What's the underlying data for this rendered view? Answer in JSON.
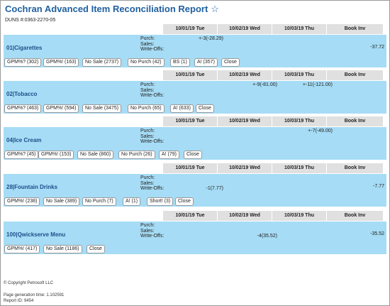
{
  "title": "Cochran Advanced Item Reconciliation Report",
  "star": "☆",
  "duns": "DUNS #:0363-2270-05",
  "columns": [
    "10/01/19 Tue",
    "10/02/19 Wed",
    "10/03/19 Thu",
    "Book Inv"
  ],
  "row_labels": [
    "Purch:",
    "Sales:",
    "Write-Offs:"
  ],
  "sections": [
    {
      "category": "01|Cigarettes",
      "purch": [
        "+-3(-28.29)",
        "",
        ""
      ],
      "writeoffs": [
        "",
        "",
        ""
      ],
      "book": "-37.72",
      "buttons": [
        "GPM%? (302)",
        "GPM%! (163)",
        "No Sale (2737)",
        "No Purch (42)",
        "BS (1)",
        "A! (357)",
        "Close"
      ]
    },
    {
      "category": "02|Tobacco",
      "purch": [
        "",
        "+-9(-81.00)",
        "+-11(-121.00)"
      ],
      "writeoffs": [
        "",
        "",
        ""
      ],
      "book": "",
      "buttons": [
        "GPM%? (463)",
        "GPM%! (594)",
        "No Sale (3475)",
        "No Purch (65)",
        "A! (633)",
        "Close"
      ]
    },
    {
      "category": "04|Ice Cream",
      "purch": [
        "",
        "",
        "+-7(-49.00)"
      ],
      "writeoffs": [
        "",
        "",
        ""
      ],
      "book": "",
      "buttons": [
        "GPM%? (45)",
        "GPM%! (153)",
        "No Sale (860)",
        "No Purch (26)",
        "A! (79)",
        "Close"
      ]
    },
    {
      "category": "28|Fountain Drinks",
      "purch": [
        "",
        "",
        ""
      ],
      "writeoffs": [
        "-1(7.77)",
        "",
        ""
      ],
      "book": "-7.77",
      "buttons": [
        "GPM%! (238)",
        "No Sale (389)",
        "No Purch (7)",
        "A! (1)",
        "Short! (3)",
        "Close"
      ]
    },
    {
      "category": "100|Qwickserve Menu",
      "purch": [
        "",
        "",
        ""
      ],
      "writeoffs": [
        "",
        "-4(35.52)",
        ""
      ],
      "book": "-35.52",
      "buttons": [
        "GPM%! (417)",
        "No Sale (1186)",
        "Close"
      ]
    }
  ],
  "footer": {
    "copyright": "© Copyright Petrosoft LLC",
    "generation": "Page generation time: 1.102591",
    "report_id": "Report ID: 9454"
  },
  "colors": {
    "title": "#1f5fa0",
    "section_bg": "#a6dcf5",
    "header_bg": "#e0e0e0"
  }
}
